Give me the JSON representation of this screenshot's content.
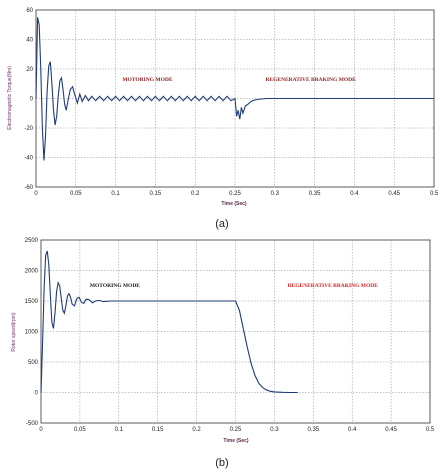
{
  "chart_data": [
    {
      "id": "a",
      "type": "line",
      "caption": "(a)",
      "xlabel": "Time (Sec)",
      "ylabel": "Electromagnetic Torque(Nm)",
      "xlim": [
        0,
        0.5
      ],
      "ylim": [
        -60,
        60
      ],
      "xticks": [
        "0",
        "0.05",
        "0.1",
        "0.15",
        "0.2",
        "0.25",
        "0.3",
        "0.35",
        "0.4",
        "0.45",
        "0.5"
      ],
      "yticks": [
        "60",
        "40",
        "20",
        "0",
        "-20",
        "-40",
        "-60"
      ],
      "grid": true,
      "annotations": [
        {
          "text": "MOTORING MODE",
          "x": 0.14,
          "y": 12,
          "color": "#8b1a1a"
        },
        {
          "text": "REGENERATIVE BRAKING MODE",
          "x": 0.345,
          "y": 12,
          "color": "#8b1a1a"
        }
      ],
      "series": [
        {
          "color": "#1f3b7a",
          "x": [
            0,
            0.002,
            0.004,
            0.006,
            0.008,
            0.01,
            0.012,
            0.014,
            0.016,
            0.018,
            0.02,
            0.022,
            0.024,
            0.026,
            0.028,
            0.03,
            0.032,
            0.034,
            0.036,
            0.038,
            0.04,
            0.043,
            0.046,
            0.049,
            0.052,
            0.055,
            0.058,
            0.062,
            0.066,
            0.07,
            0.075,
            0.08,
            0.085,
            0.09,
            0.095,
            0.1,
            0.105,
            0.11,
            0.115,
            0.12,
            0.125,
            0.13,
            0.135,
            0.14,
            0.145,
            0.15,
            0.155,
            0.16,
            0.165,
            0.17,
            0.175,
            0.18,
            0.185,
            0.19,
            0.195,
            0.2,
            0.205,
            0.21,
            0.215,
            0.22,
            0.225,
            0.23,
            0.235,
            0.24,
            0.245,
            0.25,
            0.252,
            0.254,
            0.256,
            0.258,
            0.26,
            0.263,
            0.266,
            0.27,
            0.275,
            0.28,
            0.29,
            0.3,
            0.35,
            0.4,
            0.45,
            0.5
          ],
          "y": [
            0,
            55,
            50,
            20,
            -20,
            -42,
            -25,
            5,
            22,
            25,
            10,
            -8,
            -18,
            -12,
            2,
            12,
            14,
            6,
            -4,
            -8,
            -2,
            6,
            8,
            2,
            -3,
            3,
            -2,
            2,
            -1.5,
            1.5,
            -1.5,
            1.5,
            -1.5,
            1.5,
            -1.5,
            1.5,
            -1.5,
            1.5,
            -1.5,
            1.5,
            -1.5,
            1.5,
            -1.5,
            1.5,
            -1.5,
            1.5,
            -1.5,
            1.5,
            -1.5,
            1.5,
            -1.5,
            1.5,
            -1.5,
            1.5,
            -1.5,
            1.5,
            -1.5,
            1.5,
            -1.5,
            1.5,
            -1.5,
            1.5,
            -1.5,
            1.5,
            -1.5,
            0,
            -12,
            -8,
            -14,
            -6,
            -10,
            -5,
            -4,
            -2,
            -1,
            -0.5,
            0,
            0,
            0,
            0,
            0,
            0
          ]
        }
      ]
    },
    {
      "id": "b",
      "type": "line",
      "caption": "(b)",
      "xlabel": "Time (Sec)",
      "ylabel": "Rotor speed(rpm)",
      "xlim": [
        0,
        0.5
      ],
      "ylim": [
        -500,
        2500
      ],
      "xticks": [
        "0",
        "0.05",
        "0.1",
        "0.15",
        "0.2",
        "0.25",
        "0.3",
        "0.35",
        "0.4",
        "0.45",
        "0.5"
      ],
      "yticks": [
        "2500",
        "2000",
        "1500",
        "1000",
        "500",
        "0",
        "-500"
      ],
      "grid": true,
      "annotations": [
        {
          "text": "MOTORING MODE",
          "x": 0.095,
          "y": 1730,
          "color": "#1a1a1a"
        },
        {
          "text": "REGENERATIVE BRAKING MODE",
          "x": 0.375,
          "y": 1730,
          "color": "#d42020"
        }
      ],
      "series": [
        {
          "color": "#1f3b7a",
          "x": [
            0,
            0.002,
            0.004,
            0.006,
            0.008,
            0.01,
            0.012,
            0.014,
            0.016,
            0.018,
            0.02,
            0.022,
            0.024,
            0.026,
            0.028,
            0.03,
            0.032,
            0.034,
            0.036,
            0.038,
            0.04,
            0.043,
            0.046,
            0.049,
            0.052,
            0.055,
            0.058,
            0.062,
            0.066,
            0.07,
            0.075,
            0.08,
            0.09,
            0.1,
            0.15,
            0.2,
            0.24,
            0.25,
            0.255,
            0.26,
            0.265,
            0.27,
            0.275,
            0.28,
            0.285,
            0.29,
            0.295,
            0.3,
            0.31,
            0.32,
            0.33
          ],
          "y": [
            0,
            800,
            1700,
            2250,
            2320,
            2100,
            1600,
            1150,
            1050,
            1300,
            1650,
            1800,
            1750,
            1550,
            1350,
            1300,
            1420,
            1580,
            1620,
            1560,
            1450,
            1420,
            1540,
            1560,
            1480,
            1460,
            1530,
            1520,
            1470,
            1500,
            1510,
            1490,
            1500,
            1500,
            1500,
            1500,
            1500,
            1500,
            1350,
            1050,
            750,
            480,
            280,
            150,
            80,
            40,
            20,
            10,
            3,
            0,
            0
          ]
        }
      ]
    }
  ]
}
